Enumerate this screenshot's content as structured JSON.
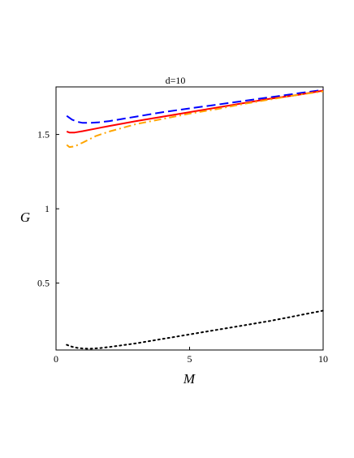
{
  "chart_data": {
    "type": "line",
    "title": "d=10",
    "xlabel": "M",
    "ylabel": "G",
    "xlim": [
      0,
      10
    ],
    "ylim": [
      0.05,
      1.82
    ],
    "grid": false,
    "legend": "none",
    "x_ticks": [
      {
        "value": 0,
        "label": "0"
      },
      {
        "value": 5,
        "label": "5"
      },
      {
        "value": 10,
        "label": "10"
      }
    ],
    "y_ticks": [
      {
        "value": 0.5,
        "label": "0.5"
      },
      {
        "value": 1,
        "label": "1"
      },
      {
        "value": 1.5,
        "label": "1.5"
      }
    ],
    "series": [
      {
        "color": "#0000ff",
        "style": "dashed",
        "x": [
          0.4,
          0.6,
          0.8,
          1.0,
          1.3,
          1.6,
          2.0,
          3.0,
          4.0,
          5.0,
          6.0,
          7.0,
          8.0,
          9.0,
          10.0
        ],
        "y": [
          1.625,
          1.6,
          1.585,
          1.578,
          1.578,
          1.582,
          1.59,
          1.62,
          1.65,
          1.675,
          1.7,
          1.725,
          1.75,
          1.775,
          1.8
        ]
      },
      {
        "color": "#ff0000",
        "style": "solid",
        "x": [
          0.4,
          0.5,
          0.7,
          1.0,
          1.5,
          2.0,
          3.0,
          4.0,
          5.0,
          6.0,
          7.0,
          8.0,
          9.0,
          10.0
        ],
        "y": [
          1.52,
          1.513,
          1.513,
          1.522,
          1.54,
          1.557,
          1.59,
          1.62,
          1.65,
          1.68,
          1.71,
          1.74,
          1.765,
          1.795
        ]
      },
      {
        "color": "#ffa500",
        "style": "dashdot",
        "x": [
          0.4,
          0.5,
          0.7,
          1.0,
          1.5,
          2.0,
          3.0,
          4.0,
          5.0,
          6.0,
          7.0,
          8.0,
          9.0,
          10.0
        ],
        "y": [
          1.43,
          1.415,
          1.42,
          1.445,
          1.49,
          1.52,
          1.57,
          1.605,
          1.64,
          1.67,
          1.705,
          1.735,
          1.765,
          1.79
        ]
      },
      {
        "color": "#000000",
        "style": "dotted",
        "x": [
          0.4,
          0.6,
          0.8,
          1.0,
          1.3,
          1.6,
          2.0,
          3.0,
          4.0,
          5.0,
          6.0,
          7.0,
          8.0,
          9.0,
          10.0
        ],
        "y": [
          0.085,
          0.072,
          0.064,
          0.06,
          0.059,
          0.062,
          0.07,
          0.095,
          0.125,
          0.155,
          0.185,
          0.215,
          0.245,
          0.28,
          0.315
        ]
      }
    ]
  }
}
